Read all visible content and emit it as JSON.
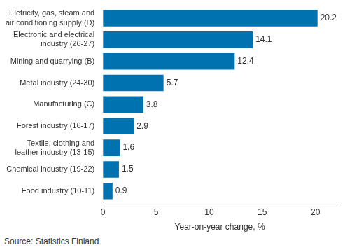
{
  "chart_data": {
    "type": "bar",
    "orientation": "horizontal",
    "categories": [
      "Eletricity, gas, steam and\nair conditioning supply (D)",
      "Electronic and electrical\nindustry (26-27)",
      "Mining and quarrying (B)",
      "Metal industry (24-30)",
      "Manufacturing (C)",
      "Forest industry (16-17)",
      "Textile, clothing and\nleather industry (13-15)",
      "Chemical industry (19-22)",
      "Food industry (10-11)"
    ],
    "values": [
      20.2,
      14.1,
      12.4,
      5.7,
      3.8,
      2.9,
      1.6,
      1.5,
      0.9
    ],
    "color": "#0072b0",
    "data_labels": true,
    "xlabel": "Year-on-year change, %",
    "xlim": [
      0,
      22
    ],
    "xticks": [
      0,
      5,
      10,
      15,
      20
    ],
    "grid": false,
    "source": "Source: Statistics Finland"
  }
}
